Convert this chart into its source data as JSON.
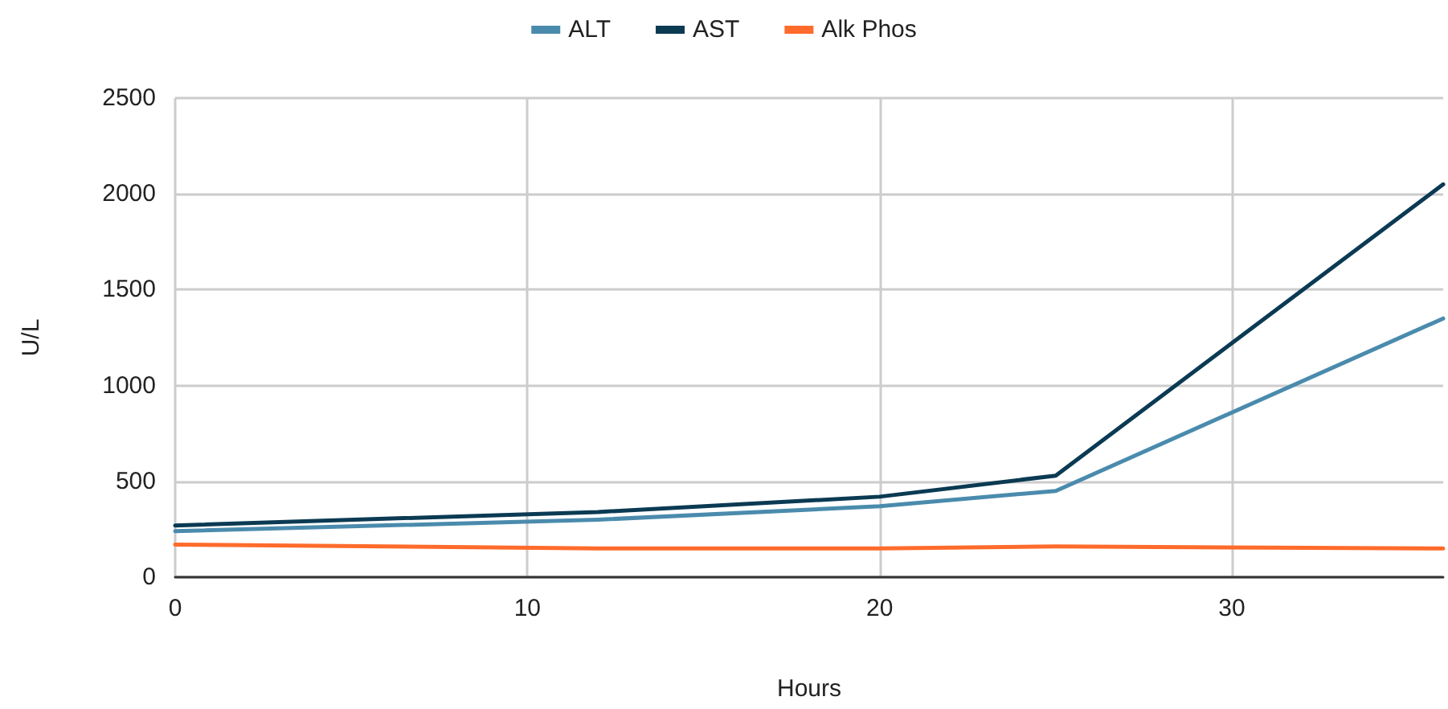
{
  "chart_data": {
    "type": "line",
    "xlabel": "Hours",
    "ylabel": "U/L",
    "x": [
      0,
      12,
      20,
      25,
      36
    ],
    "series": [
      {
        "name": "ALT",
        "color": "#4a8bad",
        "values": [
          240,
          300,
          370,
          450,
          1350
        ]
      },
      {
        "name": "AST",
        "color": "#0b3a53",
        "values": [
          270,
          340,
          420,
          530,
          2050
        ]
      },
      {
        "name": "Alk Phos",
        "color": "#ff6b2b",
        "values": [
          170,
          150,
          150,
          160,
          150
        ]
      }
    ],
    "xlim": [
      0,
      36
    ],
    "xticks": [
      0,
      10,
      20,
      30
    ],
    "ylim": [
      0,
      2500
    ],
    "yticks": [
      0,
      500,
      1000,
      1500,
      2000,
      2500
    ],
    "grid": true,
    "legend": "top",
    "marker": "none",
    "line_style": "solid"
  }
}
